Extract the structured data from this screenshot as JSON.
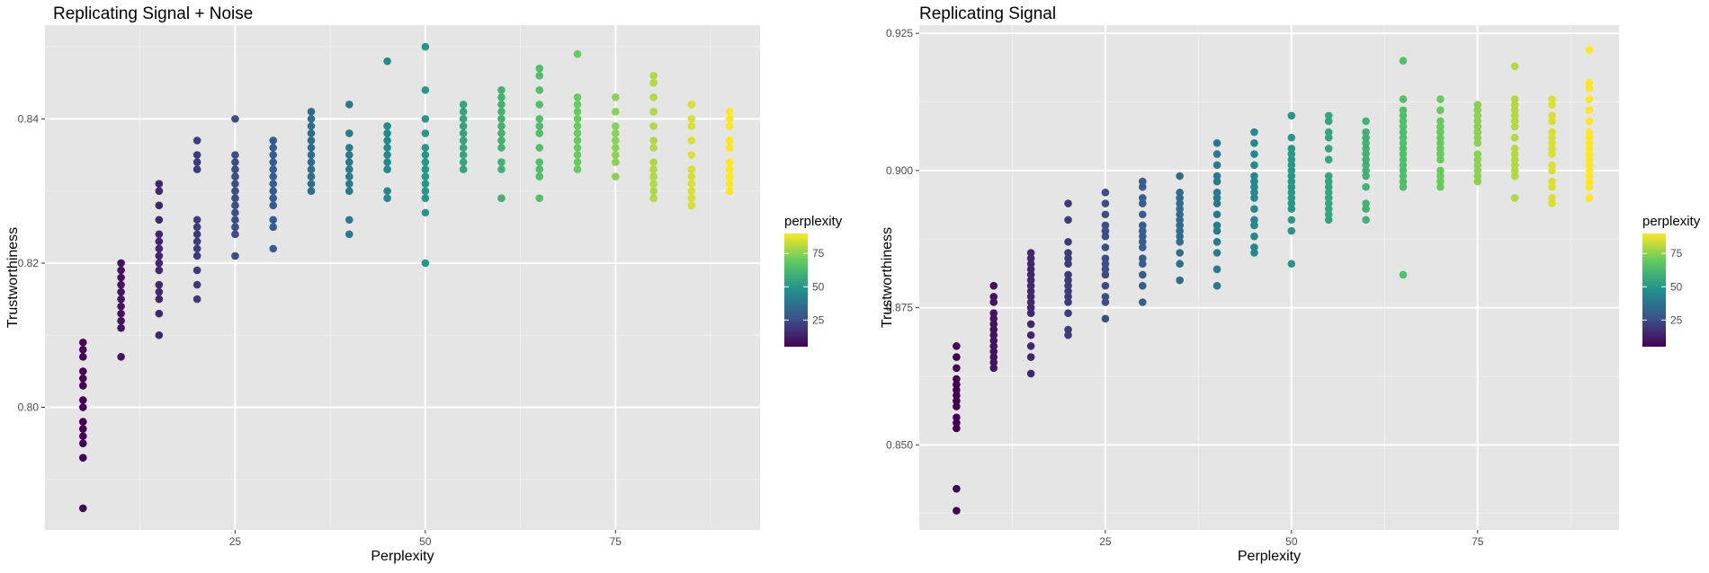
{
  "legend": {
    "title": "perplexity",
    "ticks": [
      25,
      50,
      75
    ],
    "range": [
      5,
      90
    ],
    "palette": [
      "#440154",
      "#3b528b",
      "#21908c",
      "#5dc863",
      "#fde725"
    ]
  },
  "colors": {
    "panel": "#e5e5e5",
    "grid_major": "#ffffff",
    "grid_minor": "#f0f0f0",
    "text": "#4d4d4d"
  },
  "chart_data": [
    {
      "type": "scatter",
      "title": "Replicating Signal + Noise",
      "xlabel": "Perplexity",
      "ylabel": "Trustworthiness",
      "xlim": [
        0,
        94
      ],
      "ylim": [
        0.783,
        0.853
      ],
      "xticks": [
        25,
        50,
        75
      ],
      "yticks": [
        0.8,
        0.82,
        0.84
      ],
      "yticklabels": [
        "0.80",
        "0.82",
        "0.84"
      ],
      "grid": true,
      "legend_position": "right",
      "color_by": "perplexity",
      "series": [
        {
          "x": 5,
          "values": [
            0.786,
            0.793,
            0.795,
            0.796,
            0.797,
            0.798,
            0.8,
            0.801,
            0.803,
            0.804,
            0.805,
            0.807,
            0.808,
            0.809
          ]
        },
        {
          "x": 10,
          "values": [
            0.807,
            0.811,
            0.812,
            0.813,
            0.814,
            0.815,
            0.816,
            0.817,
            0.818,
            0.819,
            0.82
          ]
        },
        {
          "x": 15,
          "values": [
            0.81,
            0.813,
            0.815,
            0.816,
            0.817,
            0.819,
            0.82,
            0.821,
            0.822,
            0.823,
            0.824,
            0.826,
            0.828,
            0.83,
            0.831
          ]
        },
        {
          "x": 20,
          "values": [
            0.815,
            0.817,
            0.819,
            0.821,
            0.822,
            0.823,
            0.824,
            0.825,
            0.826,
            0.833,
            0.834,
            0.835,
            0.837
          ]
        },
        {
          "x": 25,
          "values": [
            0.821,
            0.824,
            0.825,
            0.826,
            0.827,
            0.828,
            0.829,
            0.83,
            0.831,
            0.832,
            0.833,
            0.834,
            0.835,
            0.84
          ]
        },
        {
          "x": 30,
          "values": [
            0.822,
            0.825,
            0.826,
            0.828,
            0.829,
            0.83,
            0.831,
            0.832,
            0.833,
            0.834,
            0.835,
            0.836,
            0.837
          ]
        },
        {
          "x": 35,
          "values": [
            0.83,
            0.831,
            0.832,
            0.833,
            0.834,
            0.835,
            0.836,
            0.837,
            0.838,
            0.839,
            0.84,
            0.841
          ]
        },
        {
          "x": 40,
          "values": [
            0.824,
            0.826,
            0.83,
            0.831,
            0.832,
            0.833,
            0.834,
            0.835,
            0.836,
            0.838,
            0.842
          ]
        },
        {
          "x": 45,
          "values": [
            0.829,
            0.83,
            0.833,
            0.834,
            0.835,
            0.836,
            0.837,
            0.838,
            0.839,
            0.848
          ]
        },
        {
          "x": 50,
          "values": [
            0.82,
            0.827,
            0.829,
            0.83,
            0.831,
            0.832,
            0.833,
            0.834,
            0.835,
            0.836,
            0.838,
            0.84,
            0.844,
            0.85
          ]
        },
        {
          "x": 55,
          "values": [
            0.833,
            0.834,
            0.835,
            0.836,
            0.837,
            0.838,
            0.839,
            0.84,
            0.841,
            0.842
          ]
        },
        {
          "x": 60,
          "values": [
            0.829,
            0.833,
            0.834,
            0.836,
            0.837,
            0.838,
            0.839,
            0.84,
            0.841,
            0.842,
            0.843,
            0.844
          ]
        },
        {
          "x": 65,
          "values": [
            0.829,
            0.832,
            0.833,
            0.834,
            0.836,
            0.838,
            0.839,
            0.84,
            0.842,
            0.844,
            0.846,
            0.847
          ]
        },
        {
          "x": 70,
          "values": [
            0.833,
            0.834,
            0.835,
            0.836,
            0.837,
            0.838,
            0.839,
            0.84,
            0.841,
            0.842,
            0.843,
            0.849
          ]
        },
        {
          "x": 75,
          "values": [
            0.832,
            0.834,
            0.835,
            0.836,
            0.837,
            0.838,
            0.839,
            0.841,
            0.843
          ]
        },
        {
          "x": 80,
          "values": [
            0.829,
            0.83,
            0.831,
            0.832,
            0.833,
            0.834,
            0.836,
            0.837,
            0.839,
            0.841,
            0.843,
            0.845,
            0.846
          ]
        },
        {
          "x": 85,
          "values": [
            0.828,
            0.829,
            0.83,
            0.831,
            0.832,
            0.833,
            0.835,
            0.837,
            0.839,
            0.84,
            0.842
          ]
        },
        {
          "x": 90,
          "values": [
            0.83,
            0.831,
            0.832,
            0.833,
            0.834,
            0.836,
            0.837,
            0.839,
            0.84,
            0.841
          ]
        }
      ]
    },
    {
      "type": "scatter",
      "title": "Replicating Signal",
      "xlabel": "Perplexity",
      "ylabel": "Trustworthiness",
      "xlim": [
        0,
        94
      ],
      "ylim": [
        0.8345,
        0.9265
      ],
      "xticks": [
        25,
        50,
        75
      ],
      "yticks": [
        0.85,
        0.875,
        0.9,
        0.925
      ],
      "yticklabels": [
        "0.850",
        "0.875",
        "0.900",
        "0.925"
      ],
      "grid": true,
      "legend_position": "right",
      "color_by": "perplexity",
      "series": [
        {
          "x": 5,
          "values": [
            0.838,
            0.842,
            0.853,
            0.854,
            0.855,
            0.857,
            0.858,
            0.859,
            0.86,
            0.861,
            0.862,
            0.864,
            0.866,
            0.868
          ]
        },
        {
          "x": 10,
          "values": [
            0.864,
            0.865,
            0.866,
            0.867,
            0.868,
            0.869,
            0.87,
            0.871,
            0.872,
            0.873,
            0.874,
            0.876,
            0.877,
            0.879
          ]
        },
        {
          "x": 15,
          "values": [
            0.863,
            0.866,
            0.868,
            0.87,
            0.872,
            0.874,
            0.875,
            0.876,
            0.877,
            0.878,
            0.879,
            0.88,
            0.881,
            0.882,
            0.883,
            0.884,
            0.885
          ]
        },
        {
          "x": 20,
          "values": [
            0.87,
            0.871,
            0.874,
            0.876,
            0.877,
            0.878,
            0.879,
            0.88,
            0.881,
            0.883,
            0.884,
            0.885,
            0.887,
            0.891,
            0.894
          ]
        },
        {
          "x": 25,
          "values": [
            0.873,
            0.876,
            0.877,
            0.879,
            0.881,
            0.882,
            0.883,
            0.884,
            0.886,
            0.888,
            0.889,
            0.89,
            0.892,
            0.894,
            0.896
          ]
        },
        {
          "x": 30,
          "values": [
            0.876,
            0.879,
            0.881,
            0.883,
            0.884,
            0.886,
            0.887,
            0.888,
            0.889,
            0.89,
            0.892,
            0.894,
            0.895,
            0.897,
            0.898
          ]
        },
        {
          "x": 35,
          "values": [
            0.88,
            0.883,
            0.885,
            0.887,
            0.888,
            0.889,
            0.89,
            0.891,
            0.892,
            0.893,
            0.894,
            0.895,
            0.896,
            0.899
          ]
        },
        {
          "x": 40,
          "values": [
            0.879,
            0.882,
            0.885,
            0.887,
            0.889,
            0.89,
            0.892,
            0.894,
            0.895,
            0.896,
            0.898,
            0.899,
            0.901,
            0.903,
            0.905
          ]
        },
        {
          "x": 45,
          "values": [
            0.885,
            0.886,
            0.888,
            0.89,
            0.891,
            0.893,
            0.895,
            0.896,
            0.897,
            0.898,
            0.899,
            0.901,
            0.903,
            0.905,
            0.907
          ]
        },
        {
          "x": 50,
          "values": [
            0.883,
            0.889,
            0.891,
            0.893,
            0.894,
            0.895,
            0.896,
            0.897,
            0.898,
            0.899,
            0.9,
            0.901,
            0.902,
            0.903,
            0.904,
            0.906,
            0.91
          ]
        },
        {
          "x": 55,
          "values": [
            0.891,
            0.892,
            0.893,
            0.894,
            0.895,
            0.896,
            0.897,
            0.898,
            0.899,
            0.902,
            0.904,
            0.906,
            0.907,
            0.909,
            0.91
          ]
        },
        {
          "x": 60,
          "values": [
            0.891,
            0.893,
            0.894,
            0.897,
            0.899,
            0.9,
            0.901,
            0.902,
            0.903,
            0.904,
            0.905,
            0.906,
            0.907,
            0.909
          ]
        },
        {
          "x": 65,
          "values": [
            0.881,
            0.897,
            0.898,
            0.899,
            0.9,
            0.901,
            0.902,
            0.903,
            0.904,
            0.905,
            0.906,
            0.907,
            0.908,
            0.909,
            0.91,
            0.911,
            0.913,
            0.92
          ]
        },
        {
          "x": 70,
          "values": [
            0.897,
            0.898,
            0.899,
            0.9,
            0.902,
            0.903,
            0.904,
            0.905,
            0.906,
            0.907,
            0.908,
            0.909,
            0.911,
            0.913
          ]
        },
        {
          "x": 75,
          "values": [
            0.898,
            0.899,
            0.9,
            0.901,
            0.902,
            0.903,
            0.905,
            0.906,
            0.907,
            0.908,
            0.909,
            0.91,
            0.911,
            0.912
          ]
        },
        {
          "x": 80,
          "values": [
            0.895,
            0.899,
            0.9,
            0.901,
            0.902,
            0.903,
            0.904,
            0.906,
            0.908,
            0.909,
            0.91,
            0.911,
            0.912,
            0.913,
            0.919
          ]
        },
        {
          "x": 85,
          "values": [
            0.894,
            0.895,
            0.897,
            0.898,
            0.9,
            0.901,
            0.903,
            0.904,
            0.905,
            0.906,
            0.907,
            0.909,
            0.91,
            0.912,
            0.913
          ]
        },
        {
          "x": 90,
          "values": [
            0.895,
            0.897,
            0.898,
            0.899,
            0.9,
            0.901,
            0.902,
            0.903,
            0.904,
            0.905,
            0.906,
            0.907,
            0.909,
            0.911,
            0.913,
            0.915,
            0.916,
            0.922
          ]
        }
      ]
    }
  ]
}
